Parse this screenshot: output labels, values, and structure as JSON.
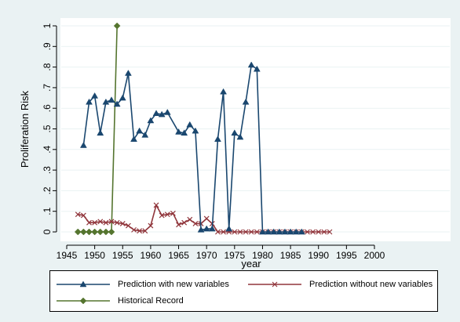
{
  "chart_data": {
    "type": "line",
    "xlabel": "year",
    "ylabel": "Proliferation Risk",
    "xlim": [
      1945,
      2000
    ],
    "ylim": [
      0,
      1
    ],
    "x_ticks": [
      1945,
      1950,
      1955,
      1960,
      1965,
      1970,
      1975,
      1980,
      1985,
      1990,
      1995,
      2000
    ],
    "x_tick_labels": [
      "1945",
      "1950",
      "1955",
      "1960",
      "1965",
      "1970",
      "1975",
      "1980",
      "1985",
      "1990",
      "1995",
      "2000"
    ],
    "y_ticks": [
      0,
      0.1,
      0.2,
      0.3,
      0.4,
      0.5,
      0.6,
      0.7,
      0.8,
      0.9,
      1
    ],
    "y_tick_labels": [
      "0",
      ".1",
      ".2",
      ".3",
      ".4",
      ".5",
      ".6",
      ".7",
      ".8",
      ".9",
      "1"
    ],
    "grid": "horizontal",
    "legend_position": "bottom",
    "series": [
      {
        "name": "Prediction with new variables",
        "color": "#1a476f",
        "marker": "triangle",
        "points": [
          [
            1948,
            0.42
          ],
          [
            1949,
            0.63
          ],
          [
            1950,
            0.66
          ],
          [
            1951,
            0.48
          ],
          [
            1952,
            0.63
          ],
          [
            1953,
            0.64
          ],
          [
            1954,
            0.62
          ],
          [
            1955,
            0.65
          ],
          [
            1956,
            0.77
          ],
          [
            1957,
            0.45
          ],
          [
            1958,
            0.49
          ],
          [
            1959,
            0.47
          ],
          [
            1960,
            0.54
          ],
          [
            1961,
            0.575
          ],
          [
            1962,
            0.57
          ],
          [
            1963,
            0.58
          ],
          [
            1965,
            0.485
          ],
          [
            1966,
            0.48
          ],
          [
            1967,
            0.52
          ],
          [
            1968,
            0.49
          ],
          [
            1969,
            0.01
          ],
          [
            1970,
            0.015
          ],
          [
            1971,
            0.015
          ],
          [
            1972,
            0.45
          ],
          [
            1973,
            0.68
          ],
          [
            1974,
            0.015
          ],
          [
            1975,
            0.48
          ],
          [
            1976,
            0.46
          ],
          [
            1977,
            0.63
          ],
          [
            1978,
            0.81
          ],
          [
            1979,
            0.79
          ],
          [
            1980,
            0.0
          ],
          [
            1981,
            0.0
          ],
          [
            1982,
            0.0
          ],
          [
            1983,
            0.0
          ],
          [
            1984,
            0.0
          ],
          [
            1985,
            0.0
          ],
          [
            1986,
            0.0
          ],
          [
            1987,
            0.0
          ]
        ]
      },
      {
        "name": "Prediction without new variables",
        "color": "#90353b",
        "marker": "x",
        "points": [
          [
            1947,
            0.085
          ],
          [
            1948,
            0.08
          ],
          [
            1949,
            0.045
          ],
          [
            1950,
            0.045
          ],
          [
            1951,
            0.05
          ],
          [
            1952,
            0.045
          ],
          [
            1953,
            0.05
          ],
          [
            1954,
            0.045
          ],
          [
            1955,
            0.04
          ],
          [
            1956,
            0.03
          ],
          [
            1957,
            0.01
          ],
          [
            1958,
            0.005
          ],
          [
            1959,
            0.005
          ],
          [
            1960,
            0.03
          ],
          [
            1961,
            0.13
          ],
          [
            1962,
            0.08
          ],
          [
            1963,
            0.085
          ],
          [
            1964,
            0.09
          ],
          [
            1965,
            0.035
          ],
          [
            1966,
            0.045
          ],
          [
            1967,
            0.06
          ],
          [
            1968,
            0.04
          ],
          [
            1969,
            0.04
          ],
          [
            1970,
            0.065
          ],
          [
            1971,
            0.04
          ],
          [
            1972,
            0.0
          ],
          [
            1973,
            0.0
          ],
          [
            1974,
            0.0
          ],
          [
            1975,
            0.0
          ],
          [
            1976,
            0.0
          ],
          [
            1977,
            0.0
          ],
          [
            1978,
            0.0
          ],
          [
            1979,
            0.0
          ],
          [
            1980,
            0.0
          ],
          [
            1981,
            0.0
          ],
          [
            1982,
            0.0
          ],
          [
            1983,
            0.0
          ],
          [
            1984,
            0.0
          ],
          [
            1985,
            0.0
          ],
          [
            1986,
            0.0
          ],
          [
            1987,
            0.0
          ],
          [
            1988,
            0.0
          ],
          [
            1989,
            0.0
          ],
          [
            1990,
            0.0
          ],
          [
            1991,
            0.0
          ],
          [
            1992,
            0.0
          ]
        ]
      },
      {
        "name": "Historical Record",
        "color": "#55752f",
        "marker": "diamond",
        "points": [
          [
            1947,
            0
          ],
          [
            1948,
            0
          ],
          [
            1949,
            0
          ],
          [
            1950,
            0
          ],
          [
            1951,
            0
          ],
          [
            1952,
            0
          ],
          [
            1953,
            0
          ],
          [
            1954,
            1
          ]
        ]
      }
    ]
  }
}
